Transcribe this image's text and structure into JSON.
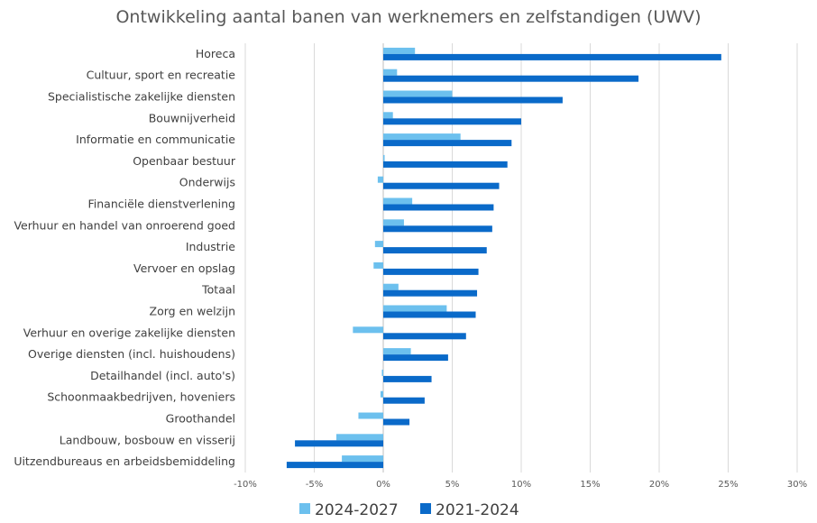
{
  "chart_data": {
    "type": "bar",
    "orientation": "horizontal",
    "title": "Ontwikkeling aantal banen van werknemers en zelfstandigen (UWV)",
    "categories": [
      "Horeca",
      "Cultuur, sport en recreatie",
      "Specialistische zakelijke diensten",
      "Bouwnijverheid",
      "Informatie en communicatie",
      "Openbaar bestuur",
      "Onderwijs",
      "Financiële dienstverlening",
      "Verhuur en handel van onroerend goed",
      "Industrie",
      "Vervoer en opslag",
      "Totaal",
      "Zorg en welzijn",
      "Verhuur en overige zakelijke diensten",
      "Overige diensten (incl. huishoudens)",
      "Detailhandel (incl. auto's)",
      "Schoonmaakbedrijven, hoveniers",
      "Groothandel",
      "Landbouw, bosbouw en visserij",
      "Uitzendbureaus en arbeidsbemiddeling"
    ],
    "series": [
      {
        "name": "2024-2027",
        "color": "#6cc0ee",
        "values": [
          2.3,
          1.0,
          5.0,
          0.7,
          5.6,
          0.1,
          -0.4,
          2.1,
          1.5,
          -0.6,
          -0.7,
          1.1,
          4.6,
          -2.2,
          2.0,
          -0.1,
          -0.2,
          -1.8,
          -3.4,
          -3.0
        ]
      },
      {
        "name": "2021-2024",
        "color": "#0a6ac9",
        "values": [
          24.5,
          18.5,
          13.0,
          10.0,
          9.3,
          9.0,
          8.4,
          8.0,
          7.9,
          7.5,
          6.9,
          6.8,
          6.7,
          6.0,
          4.7,
          3.5,
          3.0,
          1.9,
          -6.4,
          -7.0
        ]
      }
    ],
    "xlim": [
      -10,
      30
    ],
    "x_ticks": [
      "-10%",
      "-5%",
      "0%",
      "5%",
      "10%",
      "15%",
      "20%",
      "25%",
      "30%"
    ],
    "x_tick_values": [
      -10,
      -5,
      0,
      5,
      10,
      15,
      20,
      25,
      30
    ],
    "grid": true,
    "legend_position": "bottom"
  }
}
